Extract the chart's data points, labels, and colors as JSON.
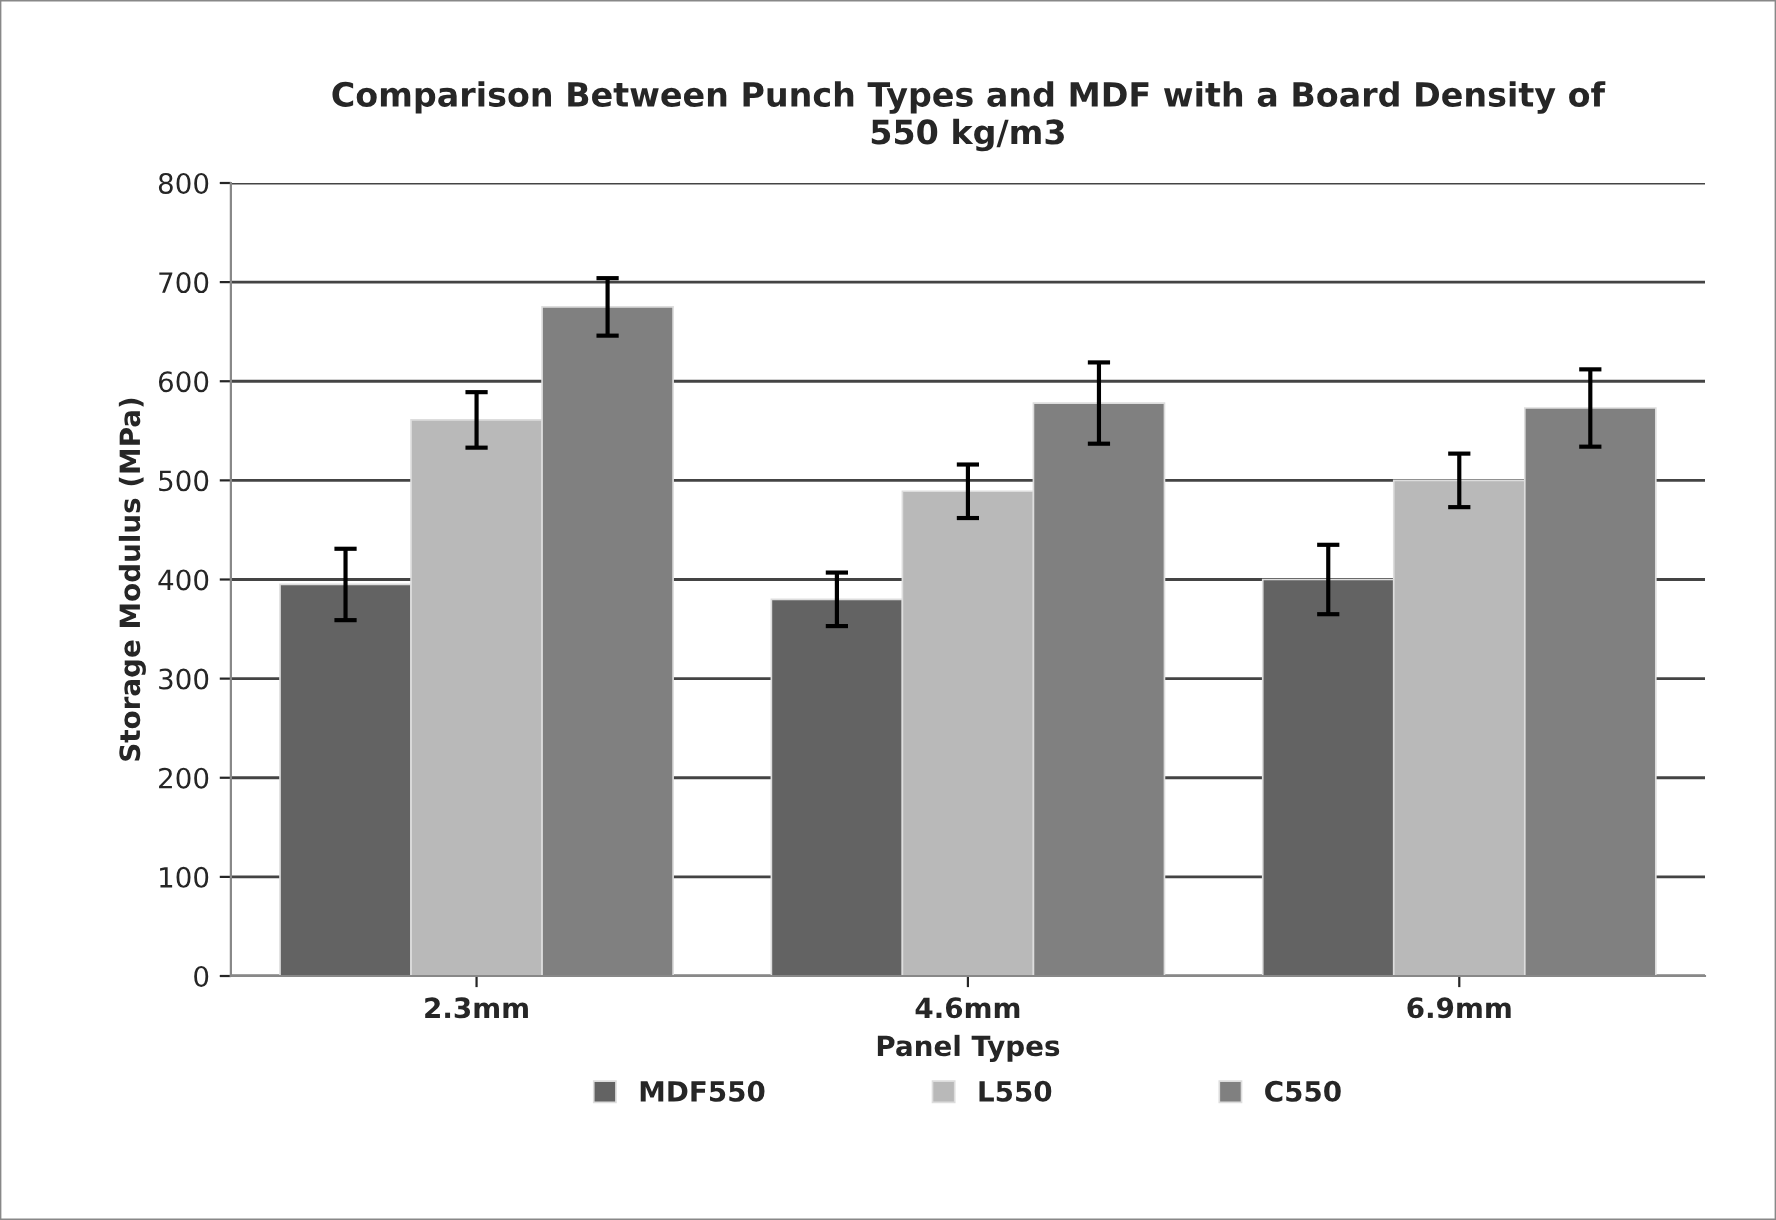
{
  "chart_data": {
    "type": "bar",
    "title": "Comparison Between Punch Types and MDF with a Board Density of\n550 kg/m3",
    "xlabel": "Panel Types",
    "ylabel": "Storage Modulus (MPa)",
    "categories": [
      "2.3mm",
      "4.6mm",
      "6.9mm"
    ],
    "series": [
      {
        "name": "MDF550",
        "color": "#636363",
        "values": [
          395,
          380,
          400
        ],
        "errors": [
          36,
          27,
          35
        ]
      },
      {
        "name": "L550",
        "color": "#b9b9b9",
        "values": [
          561,
          489,
          500
        ],
        "errors": [
          28,
          27,
          27
        ]
      },
      {
        "name": "C550",
        "color": "#808080",
        "values": [
          675,
          578,
          573
        ],
        "errors": [
          29,
          41,
          39
        ]
      }
    ],
    "ylim": [
      0,
      800
    ],
    "yticks": [
      0,
      100,
      200,
      300,
      400,
      500,
      600,
      700,
      800
    ],
    "grid": "y",
    "legend": "bottom"
  }
}
